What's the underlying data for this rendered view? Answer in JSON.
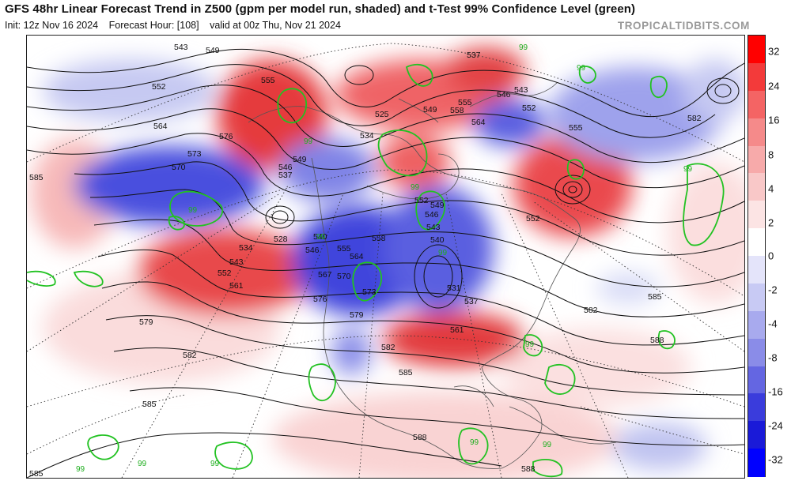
{
  "header": {
    "title": "GFS 48hr Linear Forecast Trend in Z500 (gpm per model run, shaded) and t-Test 99% Confidence Level (green)",
    "init": "Init: 12z Nov 16 2024",
    "forecast_hour": "Forecast Hour: [108]",
    "valid": "valid at 00z Thu, Nov 21 2024",
    "brand": "TROPICALTIDBITS.COM"
  },
  "colors": {
    "positive_strong": "#e8343a",
    "positive_light": "#f7c6c4",
    "negative_strong": "#3a3fdc",
    "negative_light": "#c9cdf2",
    "significance_line": "#22c222",
    "contour_line": "#111111",
    "coastline": "#555555"
  },
  "colorbar": {
    "labels": [
      "32",
      "24",
      "16",
      "8",
      "4",
      "2",
      "0",
      "-2",
      "-4",
      "-8",
      "-16",
      "-24",
      "-32"
    ],
    "colors": [
      "#ff0000",
      "#f33a3a",
      "#f46464",
      "#f58a8a",
      "#f7aaaa",
      "#f9c8c8",
      "#fce4e4",
      "#ffffff",
      "#e4e4fa",
      "#c8caf4",
      "#a8aaee",
      "#8a8ce8",
      "#6466e2",
      "#3a3cdc",
      "#1a1ad8",
      "#0000ff"
    ]
  },
  "contour_labels": [
    {
      "text": "543",
      "id": "c1"
    },
    {
      "text": "549",
      "id": "c2"
    },
    {
      "text": "552",
      "id": "c3"
    },
    {
      "text": "564",
      "id": "c4"
    },
    {
      "text": "573",
      "id": "c5"
    },
    {
      "text": "570",
      "id": "c6"
    },
    {
      "text": "585",
      "id": "c7"
    },
    {
      "text": "555",
      "id": "c8"
    },
    {
      "text": "576",
      "id": "c9"
    },
    {
      "text": "549",
      "id": "c10"
    },
    {
      "text": "546",
      "id": "c11"
    },
    {
      "text": "537",
      "id": "c12"
    },
    {
      "text": "528",
      "id": "c13"
    },
    {
      "text": "534",
      "id": "c14"
    },
    {
      "text": "543",
      "id": "c15"
    },
    {
      "text": "552",
      "id": "c16"
    },
    {
      "text": "561",
      "id": "c17"
    },
    {
      "text": "579",
      "id": "c18"
    },
    {
      "text": "582",
      "id": "c19"
    },
    {
      "text": "585",
      "id": "c20"
    },
    {
      "text": "585",
      "id": "c21"
    },
    {
      "text": "540",
      "id": "c22"
    },
    {
      "text": "546",
      "id": "c23"
    },
    {
      "text": "555",
      "id": "c24"
    },
    {
      "text": "564",
      "id": "c25"
    },
    {
      "text": "567",
      "id": "c26"
    },
    {
      "text": "570",
      "id": "c27"
    },
    {
      "text": "573",
      "id": "c28"
    },
    {
      "text": "576",
      "id": "c29"
    },
    {
      "text": "579",
      "id": "c30"
    },
    {
      "text": "582",
      "id": "c31"
    },
    {
      "text": "585",
      "id": "c32"
    },
    {
      "text": "558",
      "id": "c33"
    },
    {
      "text": "525",
      "id": "c34"
    },
    {
      "text": "534",
      "id": "c35"
    },
    {
      "text": "549",
      "id": "c36"
    },
    {
      "text": "558",
      "id": "c37"
    },
    {
      "text": "555",
      "id": "c38"
    },
    {
      "text": "564",
      "id": "c39"
    },
    {
      "text": "537",
      "id": "c40"
    },
    {
      "text": "546",
      "id": "c41"
    },
    {
      "text": "543",
      "id": "c42"
    },
    {
      "text": "552",
      "id": "c43"
    },
    {
      "text": "555",
      "id": "c44"
    },
    {
      "text": "582",
      "id": "c45"
    },
    {
      "text": "552",
      "id": "c46"
    },
    {
      "text": "546",
      "id": "c47"
    },
    {
      "text": "549",
      "id": "c48"
    },
    {
      "text": "543",
      "id": "c49"
    },
    {
      "text": "540",
      "id": "c50"
    },
    {
      "text": "531",
      "id": "c51"
    },
    {
      "text": "537",
      "id": "c52"
    },
    {
      "text": "561",
      "id": "c53"
    },
    {
      "text": "552",
      "id": "c54"
    },
    {
      "text": "582",
      "id": "c55"
    },
    {
      "text": "585",
      "id": "c56"
    },
    {
      "text": "588",
      "id": "c57"
    },
    {
      "text": "588",
      "id": "c58"
    },
    {
      "text": "588",
      "id": "c59"
    }
  ],
  "ttest_labels": [
    "99",
    "99",
    "99",
    "99",
    "99",
    "99",
    "99",
    "99",
    "99",
    "99",
    "99",
    "99",
    "99",
    "99"
  ]
}
